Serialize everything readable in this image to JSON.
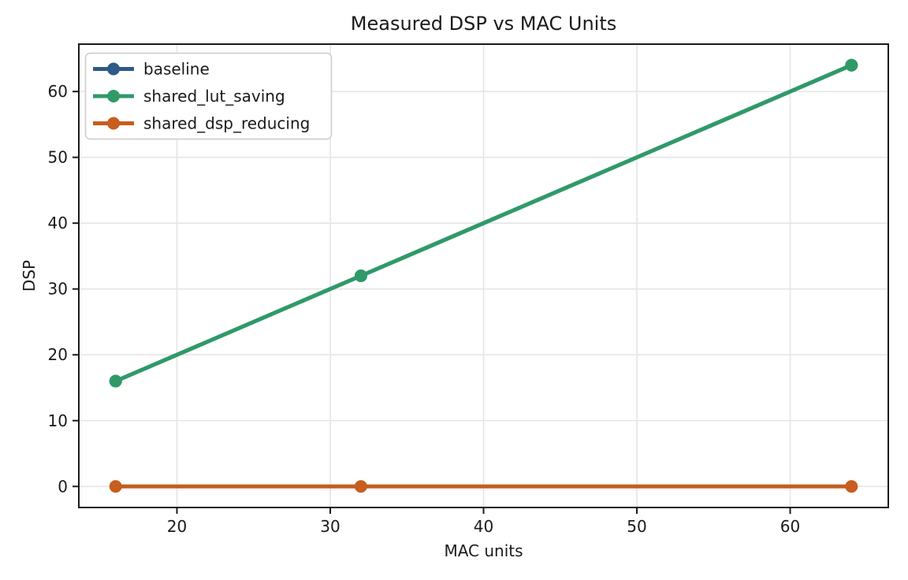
{
  "chart_data": {
    "type": "line",
    "title": "Measured DSP vs MAC Units",
    "xlabel": "MAC units",
    "ylabel": "DSP",
    "x": [
      16,
      32,
      64
    ],
    "series": [
      {
        "name": "baseline",
        "color": "#2d5a87",
        "values": [
          16,
          32,
          64
        ]
      },
      {
        "name": "shared_lut_saving",
        "color": "#2f9a68",
        "values": [
          16,
          32,
          64
        ]
      },
      {
        "name": "shared_dsp_reducing",
        "color": "#c75d1e",
        "values": [
          0,
          0,
          0
        ]
      }
    ],
    "xlim": [
      13.6,
      66.4
    ],
    "ylim": [
      -3.2,
      67.2
    ],
    "xticks": [
      20,
      30,
      40,
      50,
      60
    ],
    "yticks": [
      0,
      10,
      20,
      30,
      40,
      50,
      60
    ],
    "grid": true,
    "legend_position": "upper left",
    "marker": "circle"
  },
  "style": {
    "background": "#ffffff",
    "grid_color": "#e5e5e5",
    "spine_color": "#1a1a1a",
    "text_color": "#1a1a1a",
    "legend_border_color": "#cccccc"
  }
}
